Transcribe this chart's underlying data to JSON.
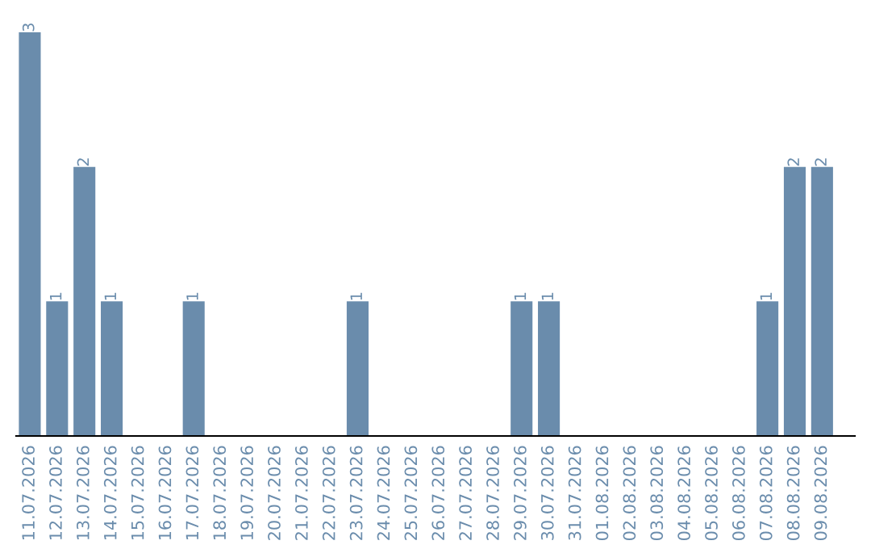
{
  "chart_data": {
    "type": "bar",
    "categories": [
      "11.07.2026",
      "12.07.2026",
      "13.07.2026",
      "14.07.2026",
      "15.07.2026",
      "16.07.2026",
      "17.07.2026",
      "18.07.2026",
      "19.07.2026",
      "20.07.2026",
      "21.07.2026",
      "22.07.2026",
      "23.07.2026",
      "24.07.2026",
      "25.07.2026",
      "26.07.2026",
      "27.07.2026",
      "28.07.2026",
      "29.07.2026",
      "30.07.2026",
      "31.07.2026",
      "01.08.2026",
      "02.08.2026",
      "03.08.2026",
      "04.08.2026",
      "05.08.2026",
      "06.08.2026",
      "07.08.2026",
      "08.08.2026",
      "09.08.2026"
    ],
    "values": [
      3,
      1,
      2,
      1,
      0,
      0,
      1,
      0,
      0,
      0,
      0,
      0,
      1,
      0,
      0,
      0,
      0,
      0,
      1,
      1,
      0,
      0,
      0,
      0,
      0,
      0,
      0,
      1,
      2,
      2
    ],
    "value_labels": [
      "3",
      "1",
      "2",
      "1",
      null,
      null,
      "1",
      null,
      null,
      null,
      null,
      null,
      "1",
      null,
      null,
      null,
      null,
      null,
      "1",
      "1",
      null,
      null,
      null,
      null,
      null,
      null,
      null,
      "1",
      "2",
      "2"
    ],
    "color": "#6a8cac",
    "grid": false,
    "tick_labels": "x"
  }
}
